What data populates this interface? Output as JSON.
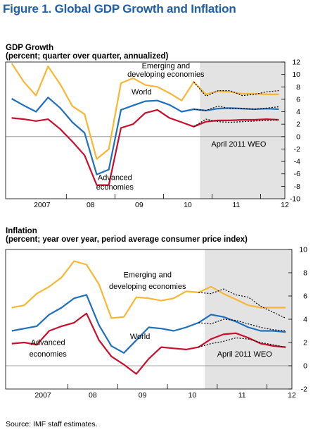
{
  "figure_title": "Figure 1.  Global GDP Growth and Inflation",
  "source": "Source: IMF staff estimates.",
  "colors": {
    "world": "#1f6fbf",
    "emerging": "#f7b733",
    "advanced": "#c8102e",
    "projection": "#000000",
    "shade": "#e3e3e3",
    "title": "#1f5ea8"
  },
  "chart_data": [
    {
      "type": "line",
      "title": "GDP Growth",
      "subtitle": "(percent; quarter over quarter, annualized)",
      "x_tick_labels": [
        "2007",
        "08",
        "09",
        "10",
        "11",
        "12"
      ],
      "x_start": 2006.75,
      "x_end": 2012.5,
      "quarters": [
        2006.875,
        2007.125,
        2007.375,
        2007.625,
        2007.875,
        2008.125,
        2008.375,
        2008.625,
        2008.875,
        2009.125,
        2009.375,
        2009.625,
        2009.875,
        2010.125,
        2010.375,
        2010.625,
        2010.875,
        2011.125,
        2011.375,
        2011.625,
        2011.875,
        2012.125,
        2012.375
      ],
      "ylim": [
        -10,
        12
      ],
      "y_ticks": [
        -10,
        -8,
        -6,
        -4,
        -2,
        0,
        2,
        4,
        6,
        8,
        10,
        12
      ],
      "shade_from": 2010.75,
      "series": [
        {
          "name": "Emerging and developing economies",
          "key": "emerging",
          "values": [
            11.8,
            8.8,
            6.6,
            11.3,
            8.4,
            4.9,
            3.6,
            -3.6,
            -2.0,
            8.6,
            9.4,
            8.3,
            8.0,
            7.0,
            5.8,
            8.8,
            6.8,
            7.3,
            7.2,
            6.9,
            6.9,
            6.8,
            6.8
          ]
        },
        {
          "name": "World",
          "key": "world",
          "values": [
            6.1,
            5.0,
            4.0,
            6.3,
            4.6,
            2.3,
            0.6,
            -6.1,
            -5.3,
            4.3,
            5.0,
            5.7,
            5.8,
            5.1,
            4.0,
            4.4,
            4.2,
            4.5,
            4.6,
            4.5,
            4.4,
            4.5,
            4.4
          ]
        },
        {
          "name": "Advanced economies",
          "key": "advanced",
          "values": [
            3.0,
            2.8,
            2.5,
            2.8,
            1.2,
            -0.8,
            -3.0,
            -7.8,
            -7.8,
            1.4,
            2.0,
            3.8,
            4.3,
            3.0,
            2.3,
            1.6,
            2.4,
            2.6,
            2.6,
            2.7,
            2.7,
            2.8,
            2.7
          ]
        }
      ],
      "projections": [
        {
          "name": "April 2011 WEO",
          "key": "emerging",
          "x": [
            2010.625,
            2010.875,
            2011.125,
            2011.375,
            2011.625,
            2011.875,
            2012.125,
            2012.375
          ],
          "values": [
            8.8,
            6.5,
            7.4,
            7.4,
            6.6,
            6.8,
            7.2,
            7.4
          ]
        },
        {
          "name": "April 2011 WEO",
          "key": "world",
          "x": [
            2010.625,
            2010.875,
            2011.125,
            2011.375,
            2011.625,
            2011.875,
            2012.125,
            2012.375
          ],
          "values": [
            4.4,
            4.2,
            4.9,
            4.5,
            4.5,
            4.4,
            4.6,
            4.8
          ]
        },
        {
          "name": "April 2011 WEO",
          "key": "advanced",
          "x": [
            2010.625,
            2010.875,
            2011.125,
            2011.375,
            2011.625,
            2011.875,
            2012.125,
            2012.375
          ],
          "values": [
            1.6,
            2.8,
            2.4,
            2.3,
            2.4,
            2.5,
            2.6,
            2.7
          ]
        }
      ],
      "annotations": [
        {
          "text": "Emerging and",
          "x": 2010.05,
          "y": 11.0
        },
        {
          "text": "developing economies",
          "x": 2010.05,
          "y": 9.6
        },
        {
          "text": "World",
          "x": 2009.55,
          "y": 6.8
        },
        {
          "text": "April 2011 WEO",
          "x": 2011.55,
          "y": -1.6
        },
        {
          "text": "Advanced",
          "x": 2009.0,
          "y": -7.0
        },
        {
          "text": "economies",
          "x": 2009.0,
          "y": -8.5
        }
      ]
    },
    {
      "type": "line",
      "title": "Inflation",
      "subtitle": "(percent; year over year, period average consumer price index)",
      "x_tick_labels": [
        "2007",
        "08",
        "09",
        "10",
        "11",
        "12"
      ],
      "x_start": 2006.75,
      "x_end": 2012.5,
      "quarters": [
        2006.875,
        2007.125,
        2007.375,
        2007.625,
        2007.875,
        2008.125,
        2008.375,
        2008.625,
        2008.875,
        2009.125,
        2009.375,
        2009.625,
        2009.875,
        2010.125,
        2010.375,
        2010.625,
        2010.875,
        2011.125,
        2011.375,
        2011.625,
        2011.875,
        2012.125,
        2012.375
      ],
      "ylim": [
        -2,
        10
      ],
      "y_ticks": [
        -2,
        0,
        2,
        4,
        6,
        8,
        10
      ],
      "shade_from": 2010.75,
      "series": [
        {
          "name": "Emerging and developing economies",
          "key": "emerging",
          "values": [
            5.0,
            5.2,
            6.2,
            6.8,
            7.6,
            9.0,
            8.7,
            7.0,
            4.1,
            4.2,
            5.9,
            5.8,
            5.6,
            5.8,
            6.4,
            6.3,
            6.8,
            6.2,
            5.7,
            5.2,
            5.0,
            5.0,
            5.0
          ]
        },
        {
          "name": "World",
          "key": "world",
          "values": [
            3.0,
            3.2,
            3.4,
            4.4,
            5.0,
            5.8,
            6.1,
            3.5,
            1.7,
            1.1,
            2.2,
            3.3,
            3.2,
            3.0,
            3.3,
            3.7,
            4.4,
            4.2,
            3.8,
            3.3,
            3.0,
            3.0,
            2.9
          ]
        },
        {
          "name": "Advanced economies",
          "key": "advanced",
          "values": [
            1.9,
            2.0,
            1.8,
            3.0,
            3.4,
            3.7,
            4.5,
            2.2,
            0.8,
            0.1,
            -0.7,
            0.6,
            1.6,
            1.5,
            1.4,
            1.6,
            2.3,
            2.7,
            2.8,
            2.4,
            1.9,
            1.7,
            1.6
          ]
        }
      ],
      "projections": [
        {
          "name": "April 2011 WEO",
          "key": "emerging",
          "x": [
            2010.625,
            2010.875,
            2011.125,
            2011.375,
            2011.625,
            2011.875,
            2012.125,
            2012.375
          ],
          "values": [
            6.3,
            6.2,
            6.6,
            6.1,
            5.9,
            5.1,
            4.6,
            4.1
          ]
        },
        {
          "name": "April 2011 WEO",
          "key": "world",
          "x": [
            2010.625,
            2010.875,
            2011.125,
            2011.375,
            2011.625,
            2011.875,
            2012.125,
            2012.375
          ],
          "values": [
            3.7,
            3.6,
            4.0,
            3.9,
            3.6,
            3.3,
            3.1,
            3.0
          ]
        },
        {
          "name": "April 2011 WEO",
          "key": "advanced",
          "x": [
            2010.625,
            2010.875,
            2011.125,
            2011.375,
            2011.625,
            2011.875,
            2012.125,
            2012.375
          ],
          "values": [
            1.6,
            1.9,
            2.1,
            2.4,
            2.3,
            2.0,
            1.8,
            1.6
          ]
        }
      ],
      "annotations": [
        {
          "text": "Emerging and",
          "x": 2009.6,
          "y": 7.6
        },
        {
          "text": "developing economies",
          "x": 2009.6,
          "y": 6.6
        },
        {
          "text": "World",
          "x": 2009.45,
          "y": 2.3
        },
        {
          "text": "April 2011 WEO",
          "x": 2011.55,
          "y": 0.8
        },
        {
          "text": "Advanced",
          "x": 2007.6,
          "y": 1.8
        },
        {
          "text": "economies",
          "x": 2007.6,
          "y": 0.8
        }
      ]
    }
  ]
}
